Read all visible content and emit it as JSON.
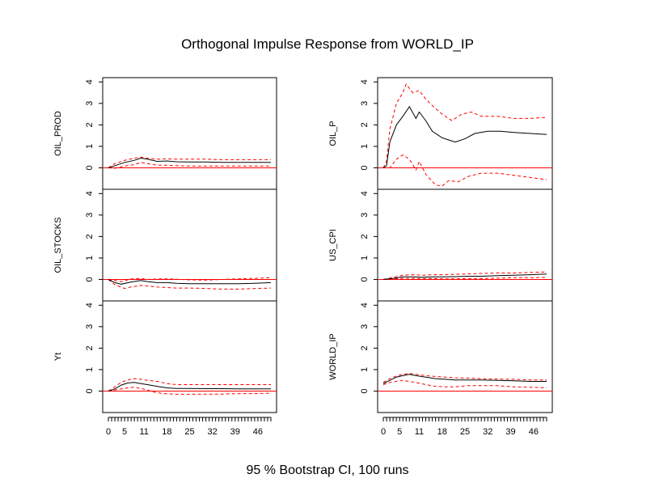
{
  "chart_data": {
    "type": "line",
    "title": "Orthogonal Impulse Response from WORLD_IP",
    "caption": "95 % Bootstrap CI,  100 runs",
    "x_ticks": [
      0,
      5,
      11,
      18,
      25,
      32,
      39,
      46
    ],
    "xlim": [
      0,
      50
    ],
    "y_ticks": [
      0,
      1,
      2,
      3,
      4
    ],
    "ylim": [
      -1.0,
      4.2
    ],
    "zero_line": true,
    "colors": {
      "response": "#000000",
      "ci": "#ff0000",
      "zero": "#ff0000"
    },
    "panels": [
      {
        "name": "OIL_PROD",
        "response": [
          [
            0,
            0
          ],
          [
            2,
            0.1
          ],
          [
            5,
            0.25
          ],
          [
            8,
            0.35
          ],
          [
            10,
            0.45
          ],
          [
            12,
            0.4
          ],
          [
            15,
            0.3
          ],
          [
            18,
            0.32
          ],
          [
            21,
            0.28
          ],
          [
            25,
            0.27
          ],
          [
            30,
            0.27
          ],
          [
            35,
            0.25
          ],
          [
            40,
            0.25
          ],
          [
            45,
            0.25
          ],
          [
            50,
            0.25
          ]
        ],
        "upper": [
          [
            0,
            0
          ],
          [
            2,
            0.2
          ],
          [
            5,
            0.35
          ],
          [
            8,
            0.45
          ],
          [
            10,
            0.5
          ],
          [
            12,
            0.45
          ],
          [
            15,
            0.4
          ],
          [
            18,
            0.42
          ],
          [
            21,
            0.4
          ],
          [
            25,
            0.4
          ],
          [
            30,
            0.4
          ],
          [
            35,
            0.38
          ],
          [
            40,
            0.38
          ],
          [
            45,
            0.38
          ],
          [
            50,
            0.38
          ]
        ],
        "lower": [
          [
            0,
            0
          ],
          [
            2,
            -0.02
          ],
          [
            5,
            0.08
          ],
          [
            8,
            0.15
          ],
          [
            10,
            0.25
          ],
          [
            12,
            0.2
          ],
          [
            15,
            0.12
          ],
          [
            18,
            0.12
          ],
          [
            21,
            0.1
          ],
          [
            25,
            0.08
          ],
          [
            30,
            0.08
          ],
          [
            35,
            0.08
          ],
          [
            40,
            0.08
          ],
          [
            45,
            0.08
          ],
          [
            50,
            0.08
          ]
        ]
      },
      {
        "name": "OIL_P",
        "response": [
          [
            0,
            0
          ],
          [
            1,
            0.1
          ],
          [
            2,
            1.2
          ],
          [
            4,
            2.0
          ],
          [
            6,
            2.4
          ],
          [
            8,
            2.85
          ],
          [
            10,
            2.3
          ],
          [
            11,
            2.6
          ],
          [
            13,
            2.2
          ],
          [
            15,
            1.7
          ],
          [
            18,
            1.4
          ],
          [
            20,
            1.3
          ],
          [
            22,
            1.2
          ],
          [
            25,
            1.35
          ],
          [
            28,
            1.6
          ],
          [
            32,
            1.7
          ],
          [
            36,
            1.7
          ],
          [
            40,
            1.65
          ],
          [
            45,
            1.6
          ],
          [
            50,
            1.55
          ]
        ],
        "upper": [
          [
            0,
            0
          ],
          [
            1,
            0.3
          ],
          [
            2,
            1.8
          ],
          [
            4,
            3.0
          ],
          [
            6,
            3.5
          ],
          [
            7,
            3.9
          ],
          [
            9,
            3.5
          ],
          [
            11,
            3.6
          ],
          [
            13,
            3.2
          ],
          [
            15,
            2.9
          ],
          [
            18,
            2.5
          ],
          [
            21,
            2.2
          ],
          [
            24,
            2.5
          ],
          [
            27,
            2.6
          ],
          [
            30,
            2.4
          ],
          [
            35,
            2.4
          ],
          [
            40,
            2.3
          ],
          [
            45,
            2.3
          ],
          [
            50,
            2.35
          ]
        ],
        "lower": [
          [
            0,
            0
          ],
          [
            2,
            0
          ],
          [
            4,
            0.4
          ],
          [
            6,
            0.6
          ],
          [
            8,
            0.4
          ],
          [
            10,
            -0.1
          ],
          [
            11,
            0.3
          ],
          [
            13,
            -0.3
          ],
          [
            16,
            -0.8
          ],
          [
            18,
            -0.85
          ],
          [
            20,
            -0.6
          ],
          [
            23,
            -0.65
          ],
          [
            26,
            -0.4
          ],
          [
            30,
            -0.25
          ],
          [
            35,
            -0.25
          ],
          [
            40,
            -0.35
          ],
          [
            45,
            -0.45
          ],
          [
            50,
            -0.55
          ]
        ]
      },
      {
        "name": "OIL_STOCKS",
        "response": [
          [
            0,
            0
          ],
          [
            2,
            -0.15
          ],
          [
            4,
            -0.22
          ],
          [
            7,
            -0.12
          ],
          [
            10,
            -0.05
          ],
          [
            12,
            -0.1
          ],
          [
            15,
            -0.15
          ],
          [
            18,
            -0.15
          ],
          [
            21,
            -0.18
          ],
          [
            25,
            -0.2
          ],
          [
            30,
            -0.2
          ],
          [
            35,
            -0.2
          ],
          [
            40,
            -0.2
          ],
          [
            45,
            -0.18
          ],
          [
            50,
            -0.15
          ]
        ],
        "upper": [
          [
            0,
            0
          ],
          [
            2,
            -0.05
          ],
          [
            4,
            -0.1
          ],
          [
            7,
            0.02
          ],
          [
            10,
            0.05
          ],
          [
            12,
            0
          ],
          [
            15,
            0.02
          ],
          [
            18,
            0.03
          ],
          [
            21,
            0.01
          ],
          [
            25,
            -0.02
          ],
          [
            30,
            -0.03
          ],
          [
            35,
            0
          ],
          [
            40,
            0.03
          ],
          [
            45,
            0.05
          ],
          [
            50,
            0.08
          ]
        ],
        "lower": [
          [
            0,
            0
          ],
          [
            2,
            -0.25
          ],
          [
            5,
            -0.42
          ],
          [
            7,
            -0.35
          ],
          [
            10,
            -0.28
          ],
          [
            12,
            -0.3
          ],
          [
            15,
            -0.35
          ],
          [
            18,
            -0.38
          ],
          [
            21,
            -0.4
          ],
          [
            25,
            -0.4
          ],
          [
            30,
            -0.42
          ],
          [
            35,
            -0.45
          ],
          [
            40,
            -0.45
          ],
          [
            45,
            -0.42
          ],
          [
            50,
            -0.4
          ]
        ]
      },
      {
        "name": "US_CPI",
        "response": [
          [
            0,
            0
          ],
          [
            3,
            0.05
          ],
          [
            6,
            0.12
          ],
          [
            9,
            0.12
          ],
          [
            12,
            0.1
          ],
          [
            15,
            0.12
          ],
          [
            18,
            0.12
          ],
          [
            22,
            0.13
          ],
          [
            26,
            0.15
          ],
          [
            30,
            0.15
          ],
          [
            35,
            0.18
          ],
          [
            40,
            0.2
          ],
          [
            45,
            0.22
          ],
          [
            50,
            0.25
          ]
        ],
        "upper": [
          [
            0,
            0
          ],
          [
            3,
            0.1
          ],
          [
            6,
            0.2
          ],
          [
            9,
            0.22
          ],
          [
            12,
            0.2
          ],
          [
            15,
            0.22
          ],
          [
            18,
            0.22
          ],
          [
            22,
            0.24
          ],
          [
            26,
            0.26
          ],
          [
            30,
            0.28
          ],
          [
            35,
            0.3
          ],
          [
            40,
            0.3
          ],
          [
            45,
            0.33
          ],
          [
            50,
            0.35
          ]
        ],
        "lower": [
          [
            0,
            0
          ],
          [
            3,
            0.02
          ],
          [
            6,
            0.05
          ],
          [
            9,
            0.05
          ],
          [
            12,
            0.04
          ],
          [
            15,
            0.04
          ],
          [
            18,
            0.03
          ],
          [
            22,
            0.03
          ],
          [
            26,
            0.04
          ],
          [
            30,
            0.04
          ],
          [
            35,
            0.06
          ],
          [
            40,
            0.08
          ],
          [
            45,
            0.08
          ],
          [
            50,
            0.1
          ]
        ]
      },
      {
        "name": "Yt",
        "response": [
          [
            0,
            0
          ],
          [
            2,
            0.1
          ],
          [
            4,
            0.28
          ],
          [
            6,
            0.38
          ],
          [
            8,
            0.4
          ],
          [
            10,
            0.35
          ],
          [
            12,
            0.3
          ],
          [
            15,
            0.22
          ],
          [
            18,
            0.15
          ],
          [
            21,
            0.12
          ],
          [
            25,
            0.12
          ],
          [
            30,
            0.11
          ],
          [
            35,
            0.11
          ],
          [
            40,
            0.1
          ],
          [
            45,
            0.1
          ],
          [
            50,
            0.1
          ]
        ],
        "upper": [
          [
            0,
            0
          ],
          [
            2,
            0.2
          ],
          [
            4,
            0.42
          ],
          [
            6,
            0.52
          ],
          [
            8,
            0.58
          ],
          [
            10,
            0.55
          ],
          [
            12,
            0.5
          ],
          [
            15,
            0.45
          ],
          [
            18,
            0.35
          ],
          [
            21,
            0.3
          ],
          [
            25,
            0.3
          ],
          [
            30,
            0.3
          ],
          [
            35,
            0.3
          ],
          [
            40,
            0.3
          ],
          [
            45,
            0.3
          ],
          [
            50,
            0.3
          ]
        ],
        "lower": [
          [
            0,
            0
          ],
          [
            2,
            0.05
          ],
          [
            4,
            0.1
          ],
          [
            6,
            0.15
          ],
          [
            8,
            0.18
          ],
          [
            10,
            0.12
          ],
          [
            12,
            0.05
          ],
          [
            14,
            -0.05
          ],
          [
            17,
            -0.12
          ],
          [
            21,
            -0.15
          ],
          [
            25,
            -0.15
          ],
          [
            30,
            -0.14
          ],
          [
            35,
            -0.14
          ],
          [
            40,
            -0.12
          ],
          [
            45,
            -0.12
          ],
          [
            50,
            -0.1
          ]
        ]
      },
      {
        "name": "WORLD_IP",
        "response": [
          [
            0,
            0.35
          ],
          [
            2,
            0.5
          ],
          [
            4,
            0.65
          ],
          [
            6,
            0.72
          ],
          [
            8,
            0.78
          ],
          [
            10,
            0.72
          ],
          [
            13,
            0.65
          ],
          [
            16,
            0.58
          ],
          [
            19,
            0.55
          ],
          [
            22,
            0.52
          ],
          [
            26,
            0.52
          ],
          [
            30,
            0.52
          ],
          [
            35,
            0.5
          ],
          [
            40,
            0.48
          ],
          [
            45,
            0.45
          ],
          [
            50,
            0.45
          ]
        ],
        "upper": [
          [
            0,
            0.4
          ],
          [
            2,
            0.58
          ],
          [
            4,
            0.7
          ],
          [
            6,
            0.78
          ],
          [
            8,
            0.82
          ],
          [
            10,
            0.78
          ],
          [
            13,
            0.72
          ],
          [
            16,
            0.68
          ],
          [
            19,
            0.65
          ],
          [
            22,
            0.62
          ],
          [
            26,
            0.6
          ],
          [
            30,
            0.58
          ],
          [
            35,
            0.56
          ],
          [
            40,
            0.55
          ],
          [
            45,
            0.52
          ],
          [
            50,
            0.52
          ]
        ],
        "lower": [
          [
            0,
            0.3
          ],
          [
            2,
            0.4
          ],
          [
            4,
            0.45
          ],
          [
            6,
            0.5
          ],
          [
            8,
            0.45
          ],
          [
            10,
            0.4
          ],
          [
            13,
            0.3
          ],
          [
            16,
            0.22
          ],
          [
            19,
            0.2
          ],
          [
            22,
            0.2
          ],
          [
            26,
            0.25
          ],
          [
            30,
            0.25
          ],
          [
            35,
            0.25
          ],
          [
            40,
            0.2
          ],
          [
            45,
            0.18
          ],
          [
            50,
            0.15
          ]
        ]
      }
    ]
  }
}
